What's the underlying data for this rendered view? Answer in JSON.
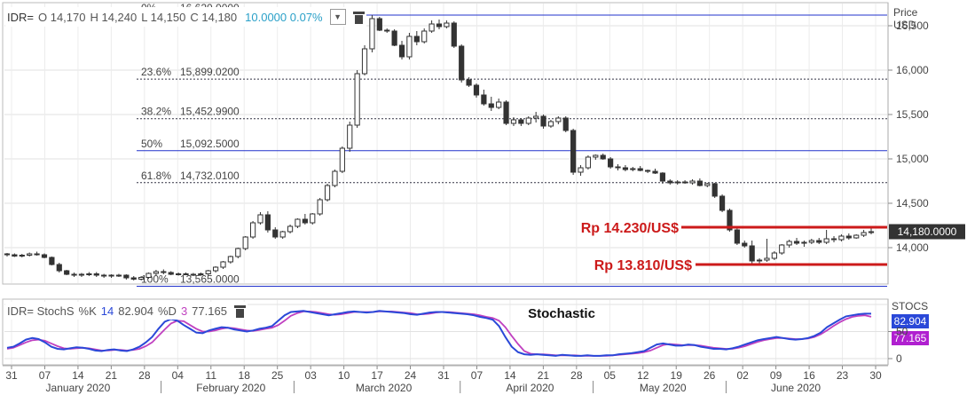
{
  "legend": {
    "symbol": "IDR=",
    "open": "O 14,170",
    "high": "H 14,240",
    "low": "L 14,150",
    "close": "C 14,180",
    "change": "10.0000 0.07%"
  },
  "stoch_legend": {
    "symbol": "IDR= StochS",
    "k_label": "%K",
    "k_period": "14",
    "k_value": "82.904",
    "d_label": "%D",
    "d_period": "3",
    "d_value": "77.165"
  },
  "stoch_title": "Stochastic",
  "price_axis": {
    "title_line1": "Price",
    "title_line2": "USD"
  },
  "stoch_axis": {
    "title": "STOCS"
  },
  "colors": {
    "fib_line": "#2233cc",
    "k_line": "#2a48d8",
    "d_line": "#c040c0",
    "annotation": "#cc1a1a",
    "candle": "#333333"
  },
  "chart_data": {
    "type": "candlestick",
    "x_label": "",
    "y_label": "Price USD",
    "ylim": [
      13600,
      16750
    ],
    "y_ticks": [
      14000,
      14500,
      15000,
      15500,
      16000,
      16500
    ],
    "y_tick_labels": [
      "14,000",
      "14,500",
      "15,000",
      "15,500",
      "16,000",
      "16,500"
    ],
    "last_price_label": "14,180.0000",
    "last_price": 14180,
    "x_ticks": [
      "31",
      "07",
      "14",
      "21",
      "28",
      "04",
      "11",
      "18",
      "25",
      "03",
      "10",
      "17",
      "24",
      "31",
      "07",
      "14",
      "21",
      "28",
      "05",
      "12",
      "19",
      "26",
      "02",
      "09",
      "16",
      "23",
      "30"
    ],
    "months": [
      "January 2020",
      "February 2020",
      "March 2020",
      "April 2020",
      "May 2020",
      "June 2020"
    ],
    "fibonacci": [
      {
        "label": "0%",
        "value": "16,620.0000",
        "level": 16620,
        "style": "solid"
      },
      {
        "label": "23.6%",
        "value": "15,899.0200",
        "level": 15899.02,
        "style": "dotted"
      },
      {
        "label": "38.2%",
        "value": "15,452.9900",
        "level": 15452.99,
        "style": "dotted"
      },
      {
        "label": "50%",
        "value": "15,092.5000",
        "level": 15092.5,
        "style": "solid"
      },
      {
        "label": "61.8%",
        "value": "14,732.0100",
        "level": 14732.01,
        "style": "dotted"
      },
      {
        "label": "100%",
        "value": "13,565.0000",
        "level": 13565,
        "style": "solid"
      }
    ],
    "annotations": [
      {
        "text": "Rp 14.230/US$",
        "level": 14230
      },
      {
        "text": "Rp 13.810/US$",
        "level": 13810
      }
    ],
    "candles": [
      [
        13930,
        13940,
        13900,
        13920
      ],
      [
        13920,
        13935,
        13895,
        13905
      ],
      [
        13905,
        13930,
        13890,
        13915
      ],
      [
        13915,
        13945,
        13900,
        13930
      ],
      [
        13930,
        13955,
        13910,
        13920
      ],
      [
        13920,
        13935,
        13880,
        13890
      ],
      [
        13890,
        13900,
        13800,
        13810
      ],
      [
        13810,
        13830,
        13720,
        13740
      ],
      [
        13740,
        13750,
        13690,
        13700
      ],
      [
        13700,
        13720,
        13670,
        13690
      ],
      [
        13690,
        13715,
        13670,
        13700
      ],
      [
        13700,
        13725,
        13680,
        13705
      ],
      [
        13705,
        13725,
        13670,
        13690
      ],
      [
        13690,
        13705,
        13660,
        13680
      ],
      [
        13680,
        13700,
        13660,
        13690
      ],
      [
        13690,
        13705,
        13670,
        13690
      ],
      [
        13690,
        13700,
        13640,
        13660
      ],
      [
        13660,
        13680,
        13630,
        13645
      ],
      [
        13645,
        13680,
        13630,
        13665
      ],
      [
        13665,
        13720,
        13650,
        13710
      ],
      [
        13710,
        13750,
        13690,
        13730
      ],
      [
        13730,
        13755,
        13700,
        13720
      ],
      [
        13720,
        13735,
        13690,
        13700
      ],
      [
        13700,
        13720,
        13685,
        13705
      ],
      [
        13705,
        13720,
        13690,
        13700
      ],
      [
        13700,
        13715,
        13680,
        13695
      ],
      [
        13695,
        13720,
        13680,
        13705
      ],
      [
        13705,
        13750,
        13690,
        13740
      ],
      [
        13740,
        13790,
        13720,
        13780
      ],
      [
        13780,
        13850,
        13760,
        13840
      ],
      [
        13840,
        13910,
        13820,
        13900
      ],
      [
        13900,
        14000,
        13880,
        13990
      ],
      [
        13990,
        14130,
        13970,
        14120
      ],
      [
        14120,
        14300,
        14100,
        14280
      ],
      [
        14280,
        14400,
        14260,
        14370
      ],
      [
        14370,
        14410,
        14170,
        14200
      ],
      [
        14200,
        14230,
        14100,
        14120
      ],
      [
        14120,
        14190,
        14100,
        14180
      ],
      [
        14180,
        14260,
        14160,
        14240
      ],
      [
        14240,
        14330,
        14220,
        14320
      ],
      [
        14320,
        14380,
        14260,
        14280
      ],
      [
        14280,
        14390,
        14260,
        14380
      ],
      [
        14380,
        14560,
        14360,
        14540
      ],
      [
        14540,
        14720,
        14520,
        14700
      ],
      [
        14700,
        14880,
        14680,
        14860
      ],
      [
        14860,
        15140,
        14840,
        15120
      ],
      [
        15120,
        15420,
        15080,
        15380
      ],
      [
        15380,
        16000,
        15350,
        15960
      ],
      [
        15960,
        16280,
        15940,
        16240
      ],
      [
        16240,
        16620,
        16200,
        16580
      ],
      [
        16580,
        16600,
        16440,
        16450
      ],
      [
        16450,
        16470,
        16420,
        16440
      ],
      [
        16440,
        16460,
        16270,
        16280
      ],
      [
        16280,
        16330,
        16120,
        16150
      ],
      [
        16150,
        16420,
        16120,
        16380
      ],
      [
        16380,
        16440,
        16280,
        16320
      ],
      [
        16320,
        16470,
        16300,
        16440
      ],
      [
        16440,
        16560,
        16420,
        16520
      ],
      [
        16520,
        16570,
        16460,
        16490
      ],
      [
        16490,
        16560,
        16470,
        16530
      ],
      [
        16530,
        16550,
        16250,
        16270
      ],
      [
        16270,
        16290,
        15860,
        15890
      ],
      [
        15890,
        15920,
        15810,
        15830
      ],
      [
        15830,
        15850,
        15690,
        15720
      ],
      [
        15720,
        15780,
        15600,
        15620
      ],
      [
        15620,
        15700,
        15540,
        15580
      ],
      [
        15580,
        15680,
        15560,
        15640
      ],
      [
        15640,
        15660,
        15380,
        15400
      ],
      [
        15400,
        15470,
        15370,
        15440
      ],
      [
        15440,
        15460,
        15370,
        15400
      ],
      [
        15400,
        15480,
        15380,
        15460
      ],
      [
        15460,
        15530,
        15410,
        15480
      ],
      [
        15480,
        15500,
        15340,
        15370
      ],
      [
        15370,
        15440,
        15350,
        15420
      ],
      [
        15420,
        15480,
        15390,
        15460
      ],
      [
        15460,
        15480,
        15300,
        15320
      ],
      [
        15320,
        15340,
        14820,
        14850
      ],
      [
        14850,
        14930,
        14810,
        14900
      ],
      [
        14900,
        15040,
        14880,
        15020
      ],
      [
        15020,
        15050,
        14990,
        15040
      ],
      [
        15040,
        15060,
        14990,
        15000
      ],
      [
        15000,
        15020,
        14890,
        14910
      ],
      [
        14910,
        14940,
        14870,
        14900
      ],
      [
        14900,
        14930,
        14860,
        14880
      ],
      [
        14880,
        14910,
        14860,
        14890
      ],
      [
        14890,
        14920,
        14860,
        14870
      ],
      [
        14870,
        14880,
        14840,
        14860
      ],
      [
        14860,
        14890,
        14830,
        14840
      ],
      [
        14840,
        14850,
        14720,
        14750
      ],
      [
        14750,
        14770,
        14710,
        14730
      ],
      [
        14730,
        14760,
        14710,
        14740
      ],
      [
        14740,
        14760,
        14720,
        14730
      ],
      [
        14730,
        14770,
        14710,
        14750
      ],
      [
        14750,
        14780,
        14690,
        14700
      ],
      [
        14700,
        14730,
        14680,
        14720
      ],
      [
        14720,
        14730,
        14560,
        14580
      ],
      [
        14580,
        14600,
        14400,
        14420
      ],
      [
        14420,
        14440,
        14180,
        14200
      ],
      [
        14200,
        14220,
        14030,
        14050
      ],
      [
        14050,
        14080,
        14000,
        14020
      ],
      [
        14020,
        14080,
        13820,
        13850
      ],
      [
        13850,
        13880,
        13820,
        13860
      ],
      [
        13860,
        14100,
        13840,
        13880
      ],
      [
        13880,
        13960,
        13860,
        13940
      ],
      [
        13940,
        14040,
        13920,
        14030
      ],
      [
        14030,
        14090,
        14000,
        14070
      ],
      [
        14070,
        14110,
        14030,
        14050
      ],
      [
        14050,
        14080,
        14010,
        14060
      ],
      [
        14060,
        14100,
        14040,
        14080
      ],
      [
        14080,
        14110,
        14040,
        14060
      ],
      [
        14060,
        14200,
        14040,
        14100
      ],
      [
        14100,
        14130,
        14060,
        14090
      ],
      [
        14090,
        14150,
        14070,
        14130
      ],
      [
        14130,
        14160,
        14090,
        14110
      ],
      [
        14110,
        14150,
        14100,
        14140
      ],
      [
        14140,
        14200,
        14120,
        14170
      ],
      [
        14170,
        14240,
        14150,
        14180
      ]
    ],
    "stochastic": {
      "ylim": [
        0,
        100
      ],
      "y_ticks": [
        0,
        50
      ],
      "y_tick_labels": [
        "0",
        "50"
      ],
      "k_value": 82.904,
      "d_value": 77.165,
      "k": [
        20,
        22,
        28,
        35,
        38,
        36,
        30,
        22,
        18,
        17,
        19,
        21,
        20,
        18,
        15,
        14,
        16,
        17,
        15,
        14,
        17,
        22,
        30,
        40,
        55,
        68,
        73,
        70,
        62,
        55,
        48,
        47,
        52,
        55,
        58,
        57,
        54,
        52,
        50,
        52,
        55,
        57,
        60,
        70,
        80,
        86,
        87,
        88,
        86,
        84,
        82,
        80,
        82,
        84,
        86,
        87,
        86,
        85,
        86,
        88,
        87,
        86,
        85,
        84,
        82,
        81,
        83,
        85,
        86,
        86,
        85,
        84,
        83,
        82,
        80,
        77,
        75,
        72,
        60,
        40,
        22,
        12,
        8,
        7,
        8,
        7,
        6,
        5,
        7,
        6,
        5,
        5,
        6,
        5,
        5,
        6,
        6,
        8,
        9,
        10,
        12,
        14,
        20,
        26,
        28,
        26,
        24,
        24,
        26,
        25,
        22,
        20,
        18,
        18,
        17,
        19,
        22,
        26,
        30,
        34,
        36,
        38,
        40,
        38,
        36,
        35,
        36,
        38,
        42,
        48,
        58,
        65,
        72,
        78,
        80,
        82,
        83,
        82.904
      ],
      "d": [
        18,
        20,
        25,
        30,
        34,
        35,
        33,
        28,
        23,
        19,
        18,
        19,
        20,
        19,
        17,
        15,
        15,
        16,
        16,
        15,
        16,
        18,
        23,
        30,
        42,
        54,
        65,
        70,
        69,
        62,
        55,
        50,
        50,
        52,
        55,
        57,
        56,
        54,
        52,
        51,
        53,
        55,
        57,
        62,
        70,
        79,
        84,
        87,
        87,
        86,
        84,
        82,
        81,
        82,
        84,
        86,
        86,
        86,
        86,
        87,
        87,
        87,
        86,
        85,
        84,
        82,
        82,
        83,
        85,
        86,
        86,
        85,
        84,
        83,
        82,
        80,
        77,
        75,
        70,
        58,
        42,
        27,
        14,
        9,
        8,
        8,
        7,
        6,
        6,
        6,
        6,
        5,
        5,
        5,
        5,
        5,
        6,
        7,
        8,
        9,
        10,
        12,
        15,
        20,
        25,
        27,
        26,
        25,
        25,
        25,
        24,
        22,
        20,
        19,
        18,
        18,
        20,
        23,
        27,
        31,
        34,
        36,
        38,
        38,
        37,
        36,
        36,
        37,
        40,
        45,
        52,
        60,
        67,
        73,
        77,
        79,
        80,
        77.165
      ]
    }
  }
}
